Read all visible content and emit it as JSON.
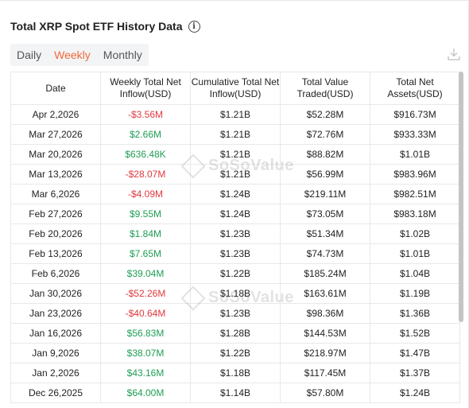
{
  "header": {
    "title": "Total XRP Spot ETF History Data"
  },
  "tabs": [
    {
      "label": "Daily",
      "active": false
    },
    {
      "label": "Weekly",
      "active": true
    },
    {
      "label": "Monthly",
      "active": false
    }
  ],
  "table": {
    "headers": [
      "Date",
      "Weekly Total Net Inflow(USD)",
      "Cumulative Total Net Inflow(USD)",
      "Total Value Traded(USD)",
      "Total Net Assets(USD)"
    ],
    "rows": [
      [
        "Apr 2,2026",
        "-$3.56M",
        "$1.21B",
        "$52.28M",
        "$916.73M"
      ],
      [
        "Mar 27,2026",
        "$2.66M",
        "$1.21B",
        "$72.76M",
        "$933.33M"
      ],
      [
        "Mar 20,2026",
        "$636.48K",
        "$1.21B",
        "$88.82M",
        "$1.01B"
      ],
      [
        "Mar 13,2026",
        "-$28.07M",
        "$1.21B",
        "$56.99M",
        "$983.96M"
      ],
      [
        "Mar 6,2026",
        "-$4.09M",
        "$1.24B",
        "$219.11M",
        "$982.51M"
      ],
      [
        "Feb 27,2026",
        "$9.55M",
        "$1.24B",
        "$73.05M",
        "$983.18M"
      ],
      [
        "Feb 20,2026",
        "$1.84M",
        "$1.23B",
        "$51.34M",
        "$1.02B"
      ],
      [
        "Feb 13,2026",
        "$7.65M",
        "$1.23B",
        "$74.73M",
        "$1.01B"
      ],
      [
        "Feb 6,2026",
        "$39.04M",
        "$1.22B",
        "$185.24M",
        "$1.04B"
      ],
      [
        "Jan 30,2026",
        "-$52.26M",
        "$1.18B",
        "$163.61M",
        "$1.19B"
      ],
      [
        "Jan 23,2026",
        "-$40.64M",
        "$1.23B",
        "$98.36M",
        "$1.36B"
      ],
      [
        "Jan 16,2026",
        "$56.83M",
        "$1.28B",
        "$144.53M",
        "$1.52B"
      ],
      [
        "Jan 9,2026",
        "$38.07M",
        "$1.22B",
        "$218.97M",
        "$1.47B"
      ],
      [
        "Jan 2,2026",
        "$43.16M",
        "$1.18B",
        "$117.45M",
        "$1.37B"
      ],
      [
        "Dec 26,2025",
        "$64.00M",
        "$1.14B",
        "$57.80M",
        "$1.24B"
      ]
    ]
  },
  "watermark": {
    "text": "SoSoValue"
  },
  "colors": {
    "accent": "#ee6a3c",
    "negative": "#e0383e",
    "positive": "#1f9d55"
  },
  "icons": {
    "info": "info-icon",
    "download": "download-icon",
    "logo": "sosovalue-logo-icon"
  }
}
